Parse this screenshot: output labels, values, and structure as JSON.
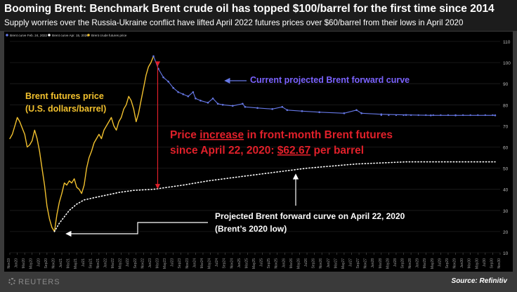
{
  "header": {
    "title": "Booming Brent: Benchmark Brent crude oil has topped $100/barrel for the first time since 2014",
    "subtitle": "Supply worries over the Russia-Ukraine conflict have lifted April 2022 futures prices over $60/barrel from their lows in April 2020"
  },
  "footer": {
    "brand": "REUTERS",
    "source": "Source: Refinitiv"
  },
  "colors": {
    "futures": "#f2c12e",
    "curve_2022": "#6678e6",
    "curve_2020": "#ffffff",
    "increase": "#e0202a",
    "current_label": "#7b63ff"
  },
  "chart_data": {
    "type": "line",
    "legend": [
      "Brent curve Feb. 24, 2022",
      "Brent curve Apr. 15, 2020",
      "Brent crude futures price"
    ],
    "legend_position": "top-left",
    "ylim": [
      10,
      110
    ],
    "yticks": [
      10,
      20,
      30,
      40,
      50,
      60,
      70,
      80,
      90,
      100,
      110
    ],
    "x_ticks": [
      "Nov19",
      "Jan20",
      "Mar20",
      "May20",
      "Jul20",
      "Sep20",
      "Nov20",
      "Jan21",
      "Mar21",
      "May21",
      "Jul21",
      "Sep21",
      "Nov21",
      "Jan22",
      "Mar22",
      "May22",
      "Jul22",
      "Sep22",
      "Nov22",
      "Jan23",
      "Mar23",
      "May23",
      "Jul23",
      "Sep23",
      "Nov23",
      "Jan24",
      "Mar24",
      "May24",
      "Jul24",
      "Sep24",
      "Nov24",
      "Jan25",
      "Mar25",
      "May25",
      "Jul25",
      "Sep25",
      "Nov25",
      "Jan26",
      "Mar26",
      "May26",
      "Jul26",
      "Sep26",
      "Nov26",
      "Jan27",
      "Mar27",
      "May27",
      "Jul27",
      "Sep27",
      "Nov27",
      "Jan28",
      "Mar28",
      "May28",
      "Jul28",
      "Sep28",
      "Nov28",
      "Jan29",
      "Mar29",
      "May29",
      "Jul29",
      "Sep29",
      "Nov29",
      "Jan30",
      "Mar30",
      "May30",
      "Jul30",
      "Sep30",
      "Nov30"
    ],
    "series": [
      {
        "name": "Brent crude futures price",
        "points": [
          [
            0,
            64
          ],
          [
            1,
            66
          ],
          [
            2,
            70
          ],
          [
            3,
            74
          ],
          [
            4,
            72
          ],
          [
            5,
            69
          ],
          [
            6,
            66
          ],
          [
            7,
            60
          ],
          [
            8,
            61
          ],
          [
            9,
            63
          ],
          [
            10,
            68
          ],
          [
            11,
            64
          ],
          [
            12,
            58
          ],
          [
            13,
            50
          ],
          [
            14,
            42
          ],
          [
            15,
            32
          ],
          [
            16,
            26
          ],
          [
            17,
            22
          ],
          [
            18,
            20
          ],
          [
            19,
            28
          ],
          [
            20,
            34
          ],
          [
            21,
            38
          ],
          [
            22,
            43
          ],
          [
            23,
            42
          ],
          [
            24,
            44
          ],
          [
            25,
            43
          ],
          [
            26,
            45
          ],
          [
            27,
            41
          ],
          [
            28,
            40
          ],
          [
            29,
            38
          ],
          [
            30,
            42
          ],
          [
            31,
            50
          ],
          [
            32,
            55
          ],
          [
            33,
            58
          ],
          [
            34,
            62
          ],
          [
            35,
            64
          ],
          [
            36,
            66
          ],
          [
            37,
            64
          ],
          [
            38,
            68
          ],
          [
            39,
            70
          ],
          [
            40,
            72
          ],
          [
            41,
            74
          ],
          [
            42,
            70
          ],
          [
            43,
            68
          ],
          [
            44,
            72
          ],
          [
            45,
            74
          ],
          [
            46,
            78
          ],
          [
            47,
            80
          ],
          [
            48,
            84
          ],
          [
            49,
            82
          ],
          [
            50,
            78
          ],
          [
            51,
            72
          ],
          [
            52,
            76
          ],
          [
            53,
            82
          ],
          [
            54,
            88
          ],
          [
            55,
            94
          ],
          [
            56,
            98
          ],
          [
            57,
            100
          ],
          [
            58,
            103
          ]
        ]
      },
      {
        "name": "Brent curve Feb. 24, 2022",
        "points": [
          [
            58,
            103
          ],
          [
            60,
            97
          ],
          [
            62,
            93
          ],
          [
            64,
            91
          ],
          [
            66,
            88
          ],
          [
            68,
            86
          ],
          [
            70,
            85
          ],
          [
            72,
            84
          ],
          [
            74,
            86
          ],
          [
            75,
            83
          ],
          [
            77,
            82
          ],
          [
            80,
            81
          ],
          [
            82,
            83
          ],
          [
            84,
            80.5
          ],
          [
            86,
            80
          ],
          [
            90,
            79.5
          ],
          [
            94,
            80.5
          ],
          [
            95,
            79
          ],
          [
            100,
            78.5
          ],
          [
            106,
            78
          ],
          [
            110,
            79
          ],
          [
            112,
            77.5
          ],
          [
            118,
            77
          ],
          [
            125,
            76.5
          ],
          [
            135,
            76
          ],
          [
            140,
            77.5
          ],
          [
            142,
            76
          ],
          [
            150,
            75.5
          ],
          [
            160,
            75.2
          ],
          [
            170,
            75
          ],
          [
            180,
            75
          ],
          [
            196,
            75
          ]
        ]
      },
      {
        "name": "Brent curve Apr. 15, 2020",
        "points": [
          [
            18,
            20
          ],
          [
            20,
            24
          ],
          [
            22,
            27
          ],
          [
            24,
            30
          ],
          [
            27,
            33
          ],
          [
            30,
            35
          ],
          [
            34,
            36
          ],
          [
            38,
            37
          ],
          [
            44,
            38.5
          ],
          [
            50,
            39.5
          ],
          [
            58,
            40
          ],
          [
            64,
            41
          ],
          [
            70,
            42
          ],
          [
            80,
            44
          ],
          [
            90,
            45.5
          ],
          [
            100,
            47
          ],
          [
            110,
            48.5
          ],
          [
            120,
            50
          ],
          [
            130,
            51
          ],
          [
            140,
            52
          ],
          [
            150,
            52.5
          ],
          [
            160,
            53
          ],
          [
            170,
            53
          ],
          [
            180,
            53
          ],
          [
            190,
            53
          ],
          [
            196,
            53
          ]
        ]
      }
    ],
    "annotations": {
      "futures_label": [
        "Brent futures price",
        "(U.S. dollars/barrel)"
      ],
      "current_curve_label": "Current projected Brent forward curve",
      "increase_line1_a": "Price ",
      "increase_line1_b": "increase",
      "increase_line1_c": " in front-month Brent futures",
      "increase_line2_a": "since April 22, 2020: ",
      "increase_line2_b": "$62.67",
      "increase_line2_c": " per barrel",
      "projected_label": [
        "Projected Brent forward curve on April 22, 2020",
        "(Brent’s 2020 low)"
      ]
    }
  }
}
